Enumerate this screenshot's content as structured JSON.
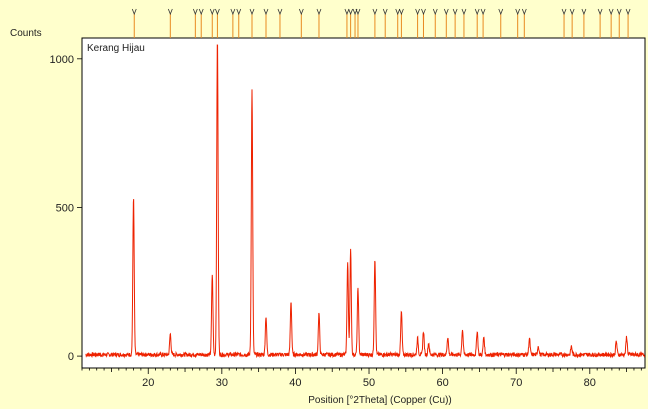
{
  "chart_data": {
    "type": "line",
    "title": "",
    "series_label": "Kerang Hijau",
    "ylabel": "Counts",
    "xlabel": "Position [°2Theta] (Copper (Cu))",
    "xlim": [
      11,
      87.5
    ],
    "ylim": [
      -40,
      1070
    ],
    "x_ticks": [
      20,
      30,
      40,
      50,
      60,
      70,
      80
    ],
    "y_ticks": [
      0,
      500,
      1000
    ],
    "line_color": "#ee2200",
    "marker_color": "#e88a20",
    "background": "#ffffcc",
    "plot_background": "#ffffff",
    "baseline": 5,
    "noise": 7,
    "peaks": [
      {
        "x": 18.0,
        "y": 530
      },
      {
        "x": 23.0,
        "y": 70
      },
      {
        "x": 28.7,
        "y": 270
      },
      {
        "x": 29.4,
        "y": 1070
      },
      {
        "x": 34.1,
        "y": 890
      },
      {
        "x": 36.0,
        "y": 130
      },
      {
        "x": 39.4,
        "y": 180
      },
      {
        "x": 43.2,
        "y": 140
      },
      {
        "x": 47.1,
        "y": 310
      },
      {
        "x": 47.5,
        "y": 350
      },
      {
        "x": 48.5,
        "y": 225
      },
      {
        "x": 50.8,
        "y": 325
      },
      {
        "x": 54.4,
        "y": 145
      },
      {
        "x": 56.6,
        "y": 55
      },
      {
        "x": 57.4,
        "y": 80
      },
      {
        "x": 58.1,
        "y": 40
      },
      {
        "x": 60.7,
        "y": 60
      },
      {
        "x": 62.7,
        "y": 85
      },
      {
        "x": 64.7,
        "y": 80
      },
      {
        "x": 65.6,
        "y": 60
      },
      {
        "x": 71.8,
        "y": 55
      },
      {
        "x": 73.0,
        "y": 30
      },
      {
        "x": 77.5,
        "y": 28
      },
      {
        "x": 83.6,
        "y": 45
      },
      {
        "x": 85.0,
        "y": 60
      }
    ],
    "reference_lines": [
      18.1,
      23.0,
      26.4,
      27.2,
      28.7,
      29.4,
      31.5,
      32.3,
      34.1,
      36.0,
      37.9,
      40.8,
      43.2,
      47.0,
      47.5,
      48.1,
      48.5,
      50.8,
      52.2,
      53.9,
      54.4,
      56.6,
      57.4,
      59.0,
      60.5,
      61.7,
      62.9,
      64.7,
      65.5,
      67.9,
      70.2,
      71.1,
      76.5,
      77.6,
      79.2,
      81.4,
      82.9,
      84.0,
      85.2
    ]
  }
}
